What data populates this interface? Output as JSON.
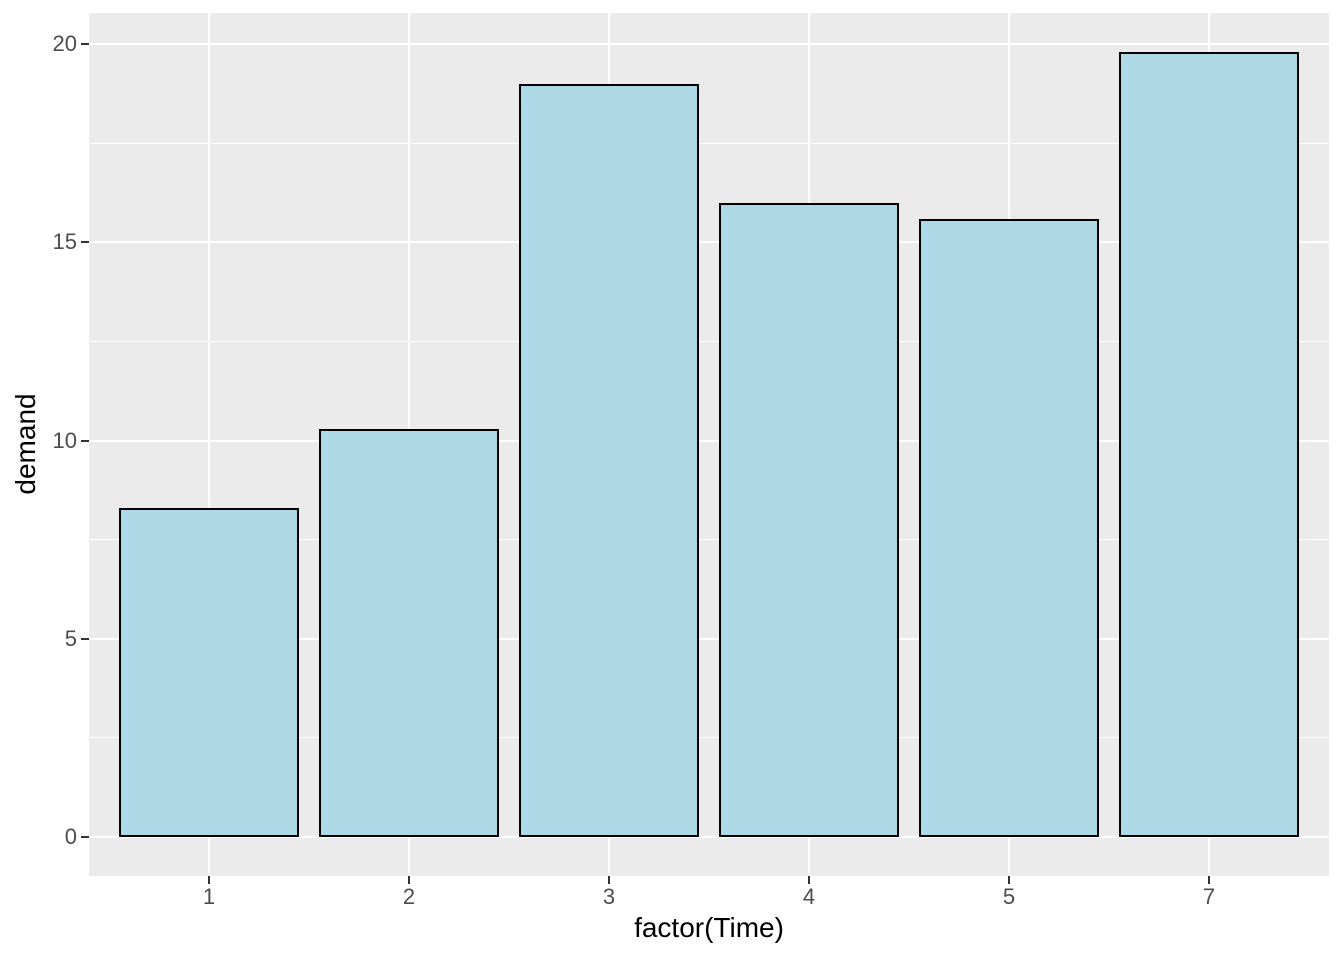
{
  "figure": {
    "background_color": "#FFFFFF",
    "panel_background_color": "#EBEBEB",
    "grid_color": "#FFFFFF",
    "bar_fill_color": "#ADD8E6",
    "bar_stroke_color": "#000000",
    "tick_mark_color": "#333333",
    "tick_label_color": "#4D4D4D",
    "axis_title_color": "#000000"
  },
  "chart_data": {
    "type": "bar",
    "title": "",
    "xlabel": "factor(Time)",
    "ylabel": "demand",
    "categories": [
      "1",
      "2",
      "3",
      "4",
      "5",
      "7"
    ],
    "values": [
      8.3,
      10.3,
      19.0,
      16.0,
      15.6,
      19.8
    ],
    "ylim": [
      -0.99,
      20.79
    ],
    "y_major_ticks": [
      0,
      5,
      10,
      15,
      20
    ],
    "y_minor_ticks": [
      2.5,
      7.5,
      12.5,
      17.5
    ],
    "x_domain": [
      0.4,
      6.6
    ],
    "bar_width_fraction": 0.9,
    "grid": true,
    "legend_position": "none"
  }
}
